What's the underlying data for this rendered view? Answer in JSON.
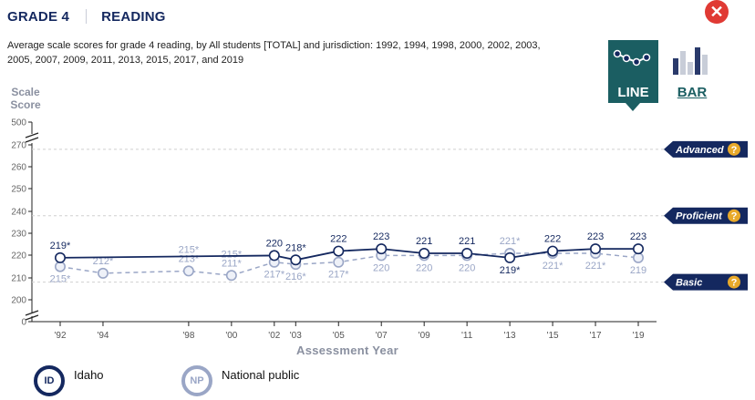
{
  "header": {
    "grade": "GRADE 4",
    "subject": "READING"
  },
  "description": "Average scale scores for grade 4 reading, by All students [TOTAL] and jurisdiction: 1992, 1994, 1998, 2000, 2002, 2003, 2005, 2007, 2009, 2011, 2013, 2015, 2017, and 2019",
  "toggle": {
    "line_label": "LINE",
    "bar_label": "BAR"
  },
  "legend": [
    {
      "abbr": "ID",
      "name": "Idaho",
      "color": "#14285f"
    },
    {
      "abbr": "NP",
      "name": "National public",
      "color": "#9aa6c6"
    }
  ],
  "colors": {
    "idaho": "#14285f",
    "national": "#9aa6c6",
    "achievement": "#14285f"
  },
  "chart_data": {
    "type": "line",
    "ylabel": "Scale Score",
    "xlabel": "Assessment Year",
    "y_ticks": [
      "500",
      "270",
      "260",
      "250",
      "240",
      "230",
      "220",
      "210",
      "200",
      "0"
    ],
    "ylim": [
      200,
      270
    ],
    "axis_break": true,
    "x": [
      1992,
      1994,
      1998,
      2000,
      2002,
      2003,
      2005,
      2007,
      2009,
      2011,
      2013,
      2015,
      2017,
      2019
    ],
    "x_tick_labels": [
      "'92",
      "'94",
      "'98",
      "'00",
      "'02",
      "'03",
      "'05",
      "'07",
      "'09",
      "'11",
      "'13",
      "'15",
      "'17",
      "'19"
    ],
    "achievement_levels": [
      {
        "name": "Advanced",
        "value": 268
      },
      {
        "name": "Proficient",
        "value": 238
      },
      {
        "name": "Basic",
        "value": 208
      }
    ],
    "series": [
      {
        "name": "Idaho",
        "values": [
          219,
          null,
          null,
          null,
          220,
          218,
          222,
          223,
          221,
          221,
          219,
          222,
          223,
          223
        ],
        "labels": [
          "219*",
          "",
          "",
          "",
          "220",
          "218*",
          "222",
          "223",
          "221",
          "221",
          "219*",
          "222",
          "223",
          "223"
        ],
        "label_pos": [
          "above",
          "",
          "",
          "",
          "above",
          "above",
          "above",
          "above",
          "above",
          "above",
          "below",
          "above",
          "above",
          "above"
        ]
      },
      {
        "name": "National public",
        "values": [
          215,
          212,
          213,
          211,
          217,
          216,
          217,
          220,
          220,
          220,
          221,
          221,
          221,
          219
        ],
        "labels": [
          "215*",
          "212*",
          "213*",
          "211*",
          "217*",
          "216*",
          "217*",
          "220",
          "220",
          "220",
          "221*",
          "221*",
          "221*",
          "219"
        ],
        "label_pos": [
          "below",
          "above",
          "above",
          "above",
          "below",
          "below",
          "below",
          "below",
          "below",
          "below",
          "above",
          "below",
          "below",
          "below"
        ],
        "extra_labels": [
          {
            "index": 2,
            "text": "215*"
          },
          {
            "index": 3,
            "text": "215*"
          }
        ]
      }
    ]
  }
}
